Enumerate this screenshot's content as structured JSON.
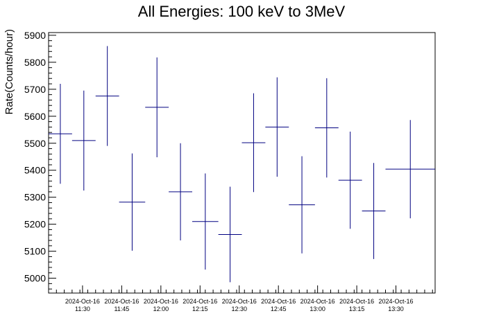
{
  "chart_data": {
    "type": "scatter",
    "title": "All Energies:  100 keV to 3MeV",
    "ylabel": "Rate(Counts/hour)",
    "xlabel": "",
    "x_range": [
      "2024-10-16 11:17",
      "2024-10-16 13:45"
    ],
    "ylim": [
      4945,
      5910
    ],
    "yticks": [
      5000,
      5100,
      5200,
      5300,
      5400,
      5500,
      5600,
      5700,
      5800,
      5900
    ],
    "xticks": [
      {
        "t": "2024-10-16 11:30",
        "date": "2024-Oct-16",
        "time": "11:30"
      },
      {
        "t": "2024-10-16 11:45",
        "date": "2024-Oct-16",
        "time": "11:45"
      },
      {
        "t": "2024-10-16 12:00",
        "date": "2024-Oct-16",
        "time": "12:00"
      },
      {
        "t": "2024-10-16 12:15",
        "date": "2024-Oct-16",
        "time": "12:15"
      },
      {
        "t": "2024-10-16 12:30",
        "date": "2024-Oct-16",
        "time": "12:30"
      },
      {
        "t": "2024-10-16 12:45",
        "date": "2024-Oct-16",
        "time": "12:45"
      },
      {
        "t": "2024-10-16 13:00",
        "date": "2024-Oct-16",
        "time": "13:00"
      },
      {
        "t": "2024-10-16 13:15",
        "date": "2024-Oct-16",
        "time": "13:15"
      },
      {
        "t": "2024-10-16 13:30",
        "date": "2024-Oct-16",
        "time": "13:30"
      }
    ],
    "grid": false,
    "legend": "none",
    "marker_color": "#000080",
    "series": [
      {
        "points": [
          {
            "x_start": "2024-10-16 11:17",
            "x_end": "2024-10-16 11:26",
            "y": 5535,
            "y_err": 185
          },
          {
            "x_start": "2024-10-16 11:26",
            "x_end": "2024-10-16 11:35",
            "y": 5510,
            "y_err": 185
          },
          {
            "x_start": "2024-10-16 11:35",
            "x_end": "2024-10-16 11:44",
            "y": 5675,
            "y_err": 185
          },
          {
            "x_start": "2024-10-16 11:44",
            "x_end": "2024-10-16 11:54",
            "y": 5282,
            "y_err": 180
          },
          {
            "x_start": "2024-10-16 11:54",
            "x_end": "2024-10-16 12:03",
            "y": 5633,
            "y_err": 185
          },
          {
            "x_start": "2024-10-16 12:03",
            "x_end": "2024-10-16 12:12",
            "y": 5320,
            "y_err": 180
          },
          {
            "x_start": "2024-10-16 12:12",
            "x_end": "2024-10-16 12:22",
            "y": 5210,
            "y_err": 178
          },
          {
            "x_start": "2024-10-16 12:22",
            "x_end": "2024-10-16 12:31",
            "y": 5162,
            "y_err": 177
          },
          {
            "x_start": "2024-10-16 12:31",
            "x_end": "2024-10-16 12:40",
            "y": 5502,
            "y_err": 183
          },
          {
            "x_start": "2024-10-16 12:40",
            "x_end": "2024-10-16 12:49",
            "y": 5560,
            "y_err": 184
          },
          {
            "x_start": "2024-10-16 12:49",
            "x_end": "2024-10-16 12:59",
            "y": 5272,
            "y_err": 180
          },
          {
            "x_start": "2024-10-16 12:59",
            "x_end": "2024-10-16 13:08",
            "y": 5557,
            "y_err": 184
          },
          {
            "x_start": "2024-10-16 13:08",
            "x_end": "2024-10-16 13:17",
            "y": 5363,
            "y_err": 180
          },
          {
            "x_start": "2024-10-16 13:17",
            "x_end": "2024-10-16 13:26",
            "y": 5249,
            "y_err": 178
          },
          {
            "x_start": "2024-10-16 13:26",
            "x_end": "2024-10-16 13:45",
            "y": 5404,
            "y_err": 182
          }
        ]
      }
    ]
  }
}
